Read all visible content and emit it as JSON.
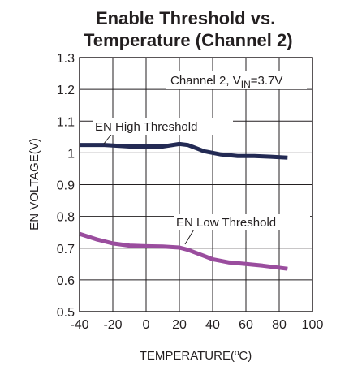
{
  "chart_data": {
    "type": "line",
    "title_line1": "Enable Threshold vs.",
    "title_line2": "Temperature (Channel 2)",
    "xlabel": "TEMPERATURE(ºC)",
    "ylabel": "EN VOLTAGE(V)",
    "xlim": [
      -40,
      100
    ],
    "ylim": [
      0.5,
      1.3
    ],
    "x_ticks": [
      "-40",
      "-20",
      "0",
      "20",
      "40",
      "60",
      "80",
      "100"
    ],
    "y_ticks": [
      "0.5",
      "0.6",
      "0.7",
      "0.8",
      "0.9",
      "1",
      "1.1",
      "1.2",
      "1.3"
    ],
    "grid": true,
    "condition_prefix": "Channel 2, V",
    "condition_subscript": "IN",
    "condition_suffix": "=3.7V",
    "series": [
      {
        "name": "EN High Threshold",
        "color": "#232a54",
        "x": [
          -40,
          -25,
          -10,
          0,
          10,
          20,
          25,
          35,
          45,
          55,
          65,
          75,
          85
        ],
        "y": [
          1.025,
          1.025,
          1.02,
          1.02,
          1.02,
          1.028,
          1.025,
          1.005,
          0.995,
          0.99,
          0.99,
          0.988,
          0.985
        ]
      },
      {
        "name": "EN Low Threshold",
        "color": "#9a4d9e",
        "x": [
          -40,
          -30,
          -20,
          -10,
          0,
          10,
          20,
          25,
          30,
          40,
          50,
          60,
          70,
          85
        ],
        "y": [
          0.745,
          0.728,
          0.715,
          0.708,
          0.706,
          0.705,
          0.702,
          0.695,
          0.685,
          0.665,
          0.655,
          0.65,
          0.645,
          0.635
        ]
      }
    ]
  }
}
